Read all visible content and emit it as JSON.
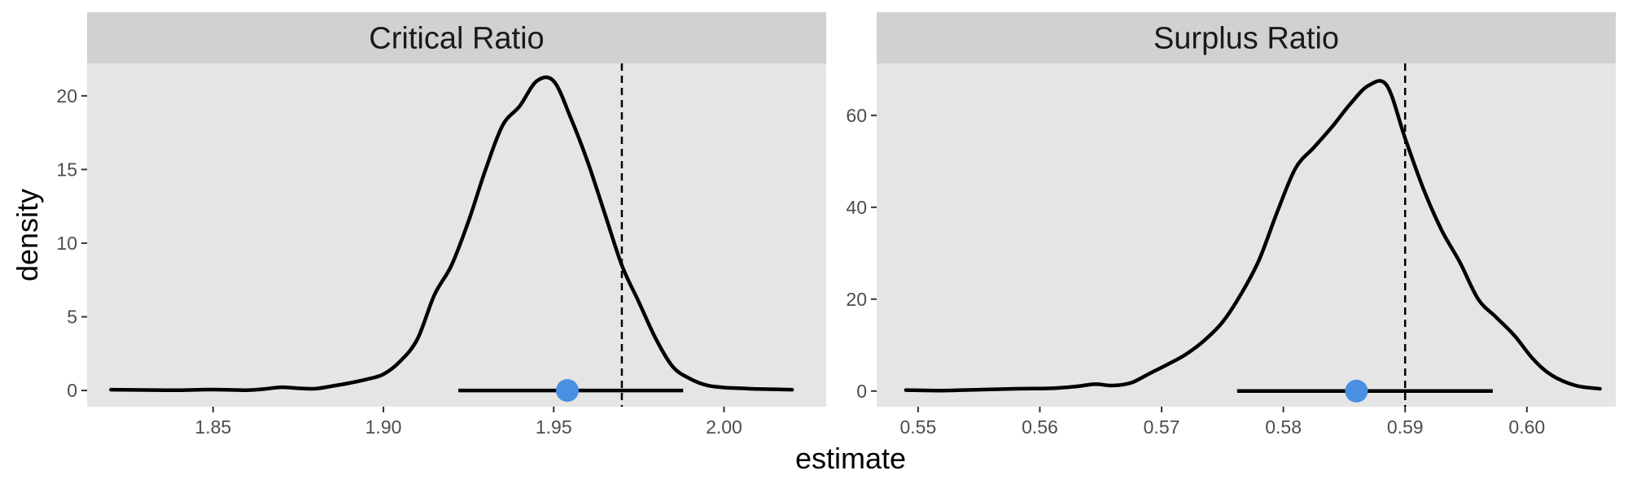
{
  "colors": {
    "panel_bg": "#e5e5e5",
    "strip_bg": "#d1d1d1",
    "curve": "#000000",
    "interval": "#000000",
    "point": "#4a90e2",
    "reference_line": "#000000",
    "tick": "#333333"
  },
  "axes": {
    "xlabel": "estimate",
    "ylabel": "density"
  },
  "chart_data": [
    {
      "type": "line",
      "title": "Critical Ratio",
      "xlim": [
        1.813,
        2.03
      ],
      "ylim": [
        -1.1,
        22.2
      ],
      "xticks": [
        1.85,
        1.9,
        1.95,
        2.0
      ],
      "xtick_labels": [
        "1.85",
        "1.90",
        "1.95",
        "2.00"
      ],
      "yticks": [
        0,
        5,
        10,
        15,
        20
      ],
      "ytick_labels": [
        "0",
        "5",
        "10",
        "15",
        "20"
      ],
      "density": {
        "x": [
          1.82,
          1.83,
          1.84,
          1.85,
          1.86,
          1.865,
          1.87,
          1.875,
          1.88,
          1.885,
          1.89,
          1.895,
          1.9,
          1.905,
          1.91,
          1.915,
          1.92,
          1.925,
          1.93,
          1.935,
          1.94,
          1.945,
          1.95,
          1.955,
          1.96,
          1.965,
          1.97,
          1.975,
          1.98,
          1.985,
          1.99,
          1.995,
          2.0,
          2.005,
          2.01,
          2.015,
          2.02
        ],
        "y": [
          0.05,
          0.03,
          0.02,
          0.06,
          0.02,
          0.1,
          0.22,
          0.15,
          0.12,
          0.3,
          0.5,
          0.75,
          1.1,
          2.0,
          3.5,
          6.5,
          8.5,
          11.5,
          15.0,
          18.0,
          19.3,
          21.0,
          21.0,
          18.5,
          15.5,
          12.0,
          8.5,
          6.0,
          3.5,
          1.6,
          0.8,
          0.35,
          0.2,
          0.15,
          0.1,
          0.08,
          0.05
        ],
        "peak_x": 1.958,
        "peak_y": 21.1
      },
      "interval": {
        "low": 1.922,
        "high": 1.988,
        "y": 0
      },
      "point_estimate": 1.954,
      "reference_line": 1.97
    },
    {
      "type": "line",
      "title": "Surplus Ratio",
      "xlim": [
        0.5466,
        0.6073
      ],
      "ylim": [
        -3.4,
        71.3
      ],
      "xticks": [
        0.55,
        0.56,
        0.57,
        0.58,
        0.59,
        0.6
      ],
      "xtick_labels": [
        "0.55",
        "0.56",
        "0.57",
        "0.58",
        "0.59",
        "0.60"
      ],
      "yticks": [
        0,
        20,
        40,
        60
      ],
      "ytick_labels": [
        "0",
        "20",
        "40",
        "60"
      ],
      "density": {
        "x": [
          0.549,
          0.552,
          0.555,
          0.558,
          0.561,
          0.563,
          0.5645,
          0.566,
          0.5675,
          0.569,
          0.5705,
          0.572,
          0.5735,
          0.575,
          0.5765,
          0.578,
          0.5795,
          0.581,
          0.5825,
          0.584,
          0.5855,
          0.587,
          0.5885,
          0.59,
          0.5915,
          0.593,
          0.5945,
          0.596,
          0.5975,
          0.599,
          0.6005,
          0.602,
          0.604,
          0.606
        ],
        "y": [
          0.2,
          0.1,
          0.3,
          0.5,
          0.6,
          1.0,
          1.5,
          1.2,
          1.8,
          3.8,
          5.8,
          8.0,
          11.0,
          15.0,
          21.0,
          28.5,
          39.0,
          48.5,
          53.0,
          57.5,
          62.5,
          66.5,
          66.5,
          55.0,
          44.0,
          35.0,
          28.0,
          20.0,
          16.0,
          12.0,
          7.0,
          3.5,
          1.2,
          0.5
        ],
        "peak_x": 0.5875,
        "peak_y": 68.0
      },
      "interval": {
        "low": 0.5762,
        "high": 0.5972,
        "y": 0
      },
      "point_estimate": 0.586,
      "reference_line": 0.59
    }
  ]
}
